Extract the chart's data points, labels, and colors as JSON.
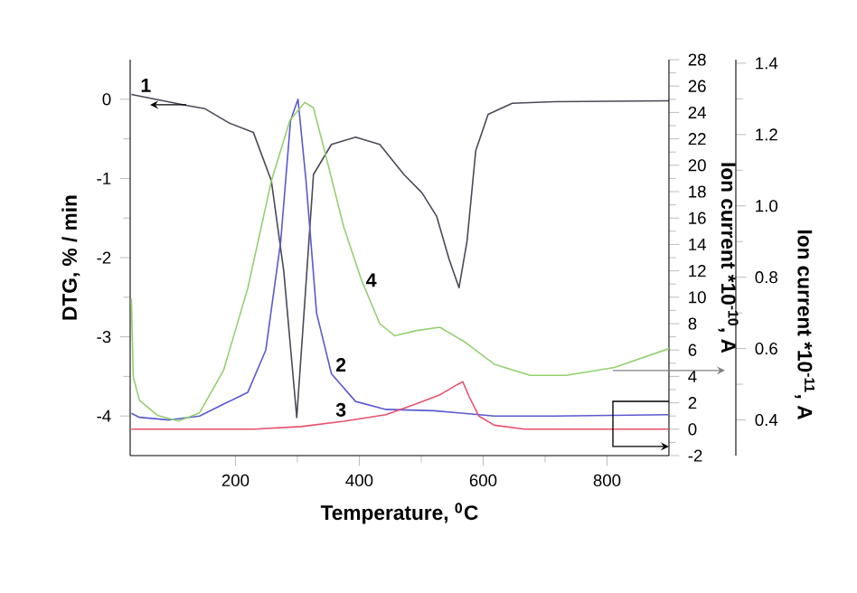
{
  "chart_data": {
    "type": "line",
    "xlabel": "Temperature, $^{0}$C",
    "ylabel": "DTG, % / min",
    "y2label": "Ion current *10$^{-10}$, A",
    "y3label": "Ion current *10$^{-11}$, A",
    "xlim": [
      30,
      900
    ],
    "xticks": [
      200,
      400,
      600,
      800
    ],
    "ylim": [
      -4.5,
      0.5
    ],
    "yticks": [
      -4,
      -3,
      -2,
      -1,
      0
    ],
    "y2lim": [
      -2,
      28
    ],
    "y2ticks": [
      -2,
      0,
      2,
      4,
      6,
      8,
      10,
      12,
      14,
      16,
      18,
      20,
      22,
      24,
      26,
      28
    ],
    "y3lim": [
      0.3,
      1.41
    ],
    "y3ticks": [
      0.4,
      0.6,
      0.8,
      {
        "value": 1.0,
        "label": "1.0"
      },
      1.2,
      1.4
    ],
    "series": [
      {
        "color": "#4a4a58",
        "axis": "y",
        "x": [
          32,
          122,
          151,
          190,
          229,
          258,
          278,
          299,
          312,
          326,
          355,
          394,
          433,
          472,
          501,
          525,
          545,
          561,
          574,
          588,
          608,
          647,
          715,
          900
        ],
        "values": [
          0.06,
          -0.08,
          -0.12,
          -0.3,
          -0.42,
          -1.03,
          -2.17,
          -4.02,
          -2.55,
          -0.95,
          -0.57,
          -0.48,
          -0.57,
          -0.95,
          -1.18,
          -1.48,
          -2.02,
          -2.38,
          -1.79,
          -0.65,
          -0.19,
          -0.05,
          -0.03,
          -0.02
        ]
      },
      {
        "color": "#5a5ad0",
        "axis": "y2",
        "x": [
          32,
          45,
          93,
          142,
          181,
          220,
          249,
          273,
          289,
          301,
          314,
          331,
          355,
          394,
          443,
          521,
          569,
          618,
          715,
          900
        ],
        "values": [
          1.2,
          0.9,
          0.7,
          1.0,
          1.9,
          2.8,
          6.0,
          14.2,
          23.4,
          25.0,
          18.8,
          8.8,
          4.2,
          2.1,
          1.5,
          1.4,
          1.2,
          1.0,
          1.0,
          1.1
        ]
      },
      {
        "color": "#e8506e",
        "axis": "y2",
        "x": [
          32,
          229,
          306,
          375,
          443,
          491,
          530,
          555,
          567,
          578,
          593,
          618,
          667,
          900
        ],
        "values": [
          0,
          0,
          0.2,
          0.6,
          1.1,
          1.9,
          2.6,
          3.3,
          3.6,
          2.4,
          1.0,
          0.3,
          0,
          0
        ]
      },
      {
        "color": "#94d070",
        "axis": "y3",
        "x": [
          32,
          35,
          45,
          74,
          108,
          142,
          181,
          220,
          258,
          288,
          312,
          326,
          346,
          375,
          404,
          433,
          457,
          491,
          530,
          569,
          618,
          676,
          734,
          812,
          900
        ],
        "values": [
          0.74,
          0.52,
          0.455,
          0.413,
          0.397,
          0.42,
          0.54,
          0.77,
          1.07,
          1.24,
          1.29,
          1.275,
          1.14,
          0.94,
          0.79,
          0.67,
          0.636,
          0.65,
          0.66,
          0.62,
          0.556,
          0.525,
          0.525,
          0.547,
          0.6
        ]
      }
    ],
    "annotations": [
      {
        "text": "1",
        "x": 40,
        "y": 0.04
      },
      {
        "text": "2",
        "x": 355,
        "y": -3.49
      },
      {
        "text": "3",
        "x": 355,
        "y": -4.06
      },
      {
        "text": "4",
        "x": 404,
        "y": -2.42
      }
    ]
  }
}
